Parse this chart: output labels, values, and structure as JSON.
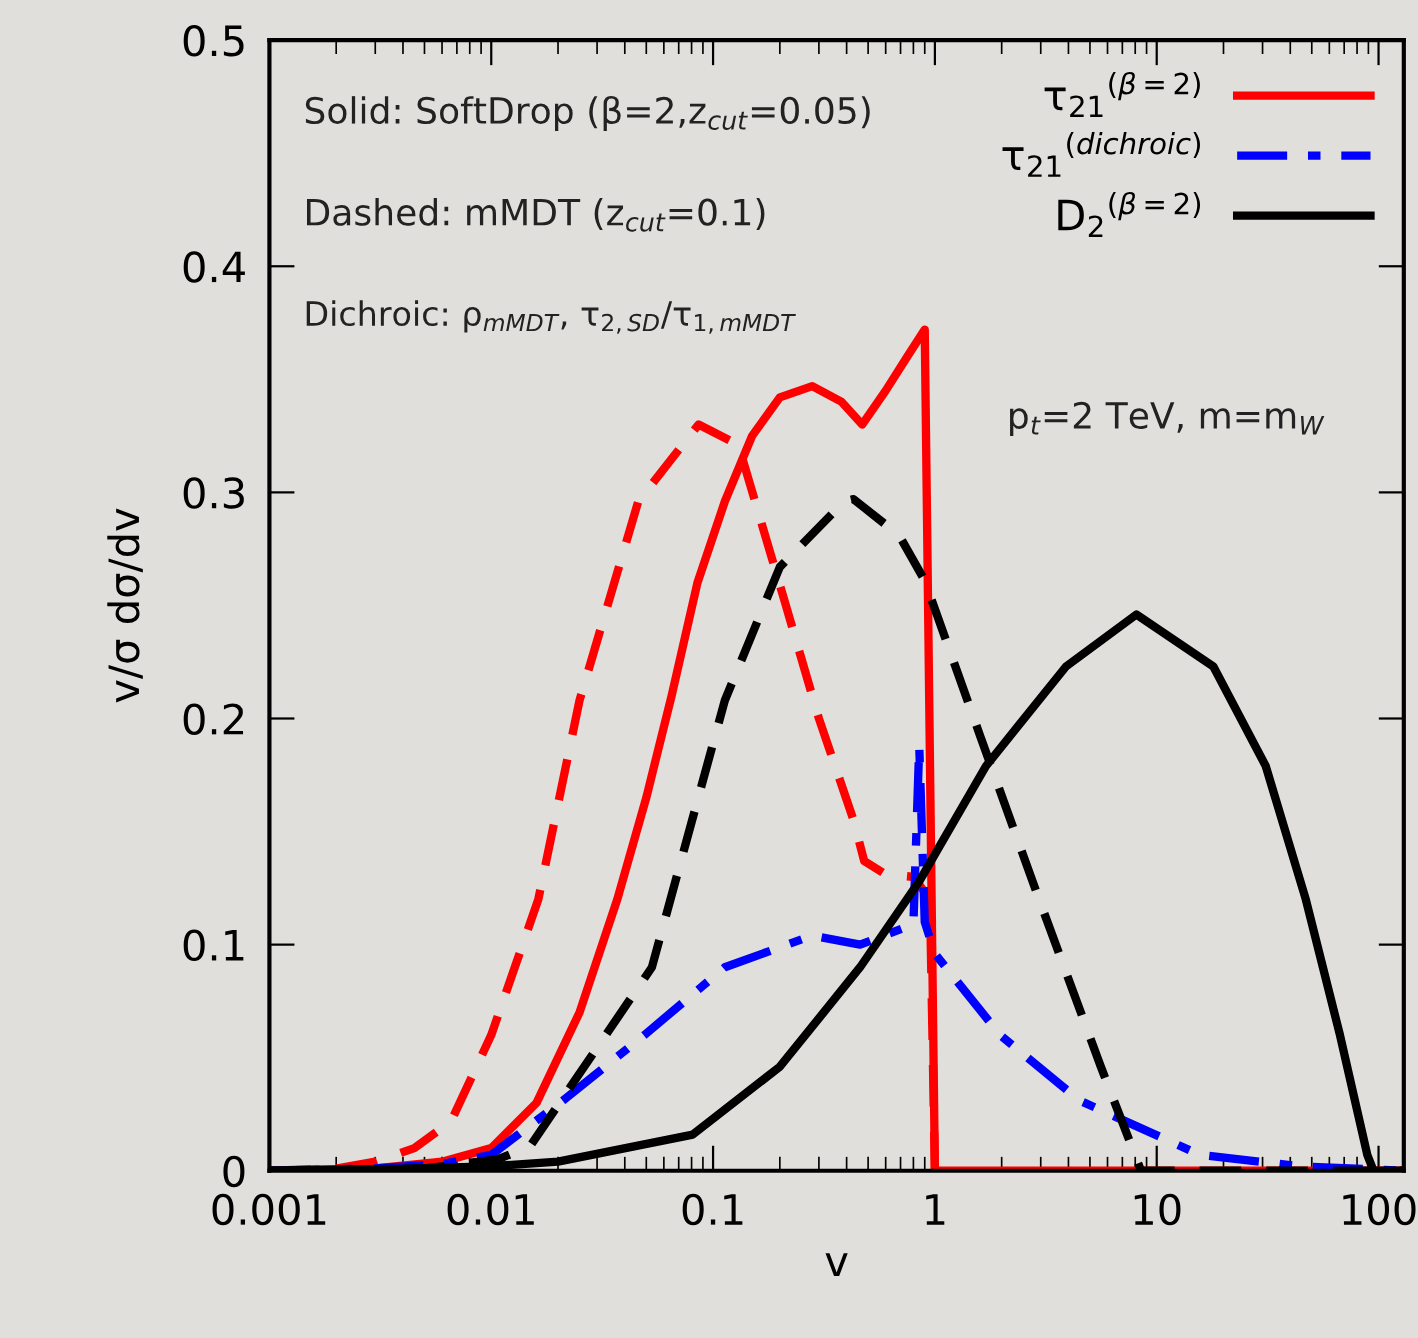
{
  "chart_data": {
    "type": "line",
    "xlabel": "v",
    "ylabel": "v/σ dσ/dv",
    "log": "x",
    "grid": false,
    "legend": "top right",
    "xlim": [
      0.001,
      130
    ],
    "xticks": [
      {
        "value": 0.001,
        "label": "0.001"
      },
      {
        "value": 0.01,
        "label": "0.01"
      },
      {
        "value": 0.1,
        "label": "0.1"
      },
      {
        "value": 1,
        "label": "1"
      },
      {
        "value": 10,
        "label": "10"
      },
      {
        "value": 100,
        "label": "100"
      }
    ],
    "ylim": [
      0,
      0.5
    ],
    "yticks": [
      0,
      0.1,
      0.2,
      0.3,
      0.4,
      0.5
    ],
    "annotations": [
      "Solid: SoftDrop (β=2,z$_{cut}$=0.05)",
      "Dashed: mMDT (z$_{cut}$=0.1)",
      "Dichroic: ρ$_{mMDT}$, τ$_{2,SD}$/τ$_{1,mMDT}$",
      "p$_{t}$=2 TeV, m=m$_{W}$"
    ],
    "series": [
      {
        "name": "τ$_{21}$$^{(β=2)}$",
        "color": "#ff0000",
        "line_style": "solid",
        "x": [
          0.001,
          0.003,
          0.006,
          0.01,
          0.016,
          0.025,
          0.037,
          0.05,
          0.065,
          0.085,
          0.113,
          0.15,
          0.2,
          0.28,
          0.38,
          0.47,
          0.6,
          0.75,
          0.9,
          1.0,
          10,
          130
        ],
        "values": [
          0,
          0.001,
          0.004,
          0.01,
          0.03,
          0.07,
          0.12,
          0.165,
          0.21,
          0.26,
          0.296,
          0.325,
          0.342,
          0.347,
          0.34,
          0.33,
          0.345,
          0.36,
          0.372,
          0,
          0,
          0
        ]
      },
      {
        "color": "#ff0000",
        "line_style": "dashed",
        "x": [
          0.001,
          0.002,
          0.003,
          0.0045,
          0.0066,
          0.01,
          0.0163,
          0.025,
          0.046,
          0.086,
          0.13,
          0.21,
          0.3,
          0.43,
          0.48,
          0.6,
          0.8,
          0.95,
          1.0
        ],
        "values": [
          0,
          0.001,
          0.004,
          0.01,
          0.022,
          0.06,
          0.12,
          0.208,
          0.296,
          0.33,
          0.321,
          0.252,
          0.2,
          0.155,
          0.137,
          0.131,
          0.13,
          0.12,
          0
        ]
      },
      {
        "name": "τ$_{21}$$^{(dichroic)}$",
        "color": "#0000ff",
        "line_style": "dashdot",
        "x": [
          0.001,
          0.003,
          0.006,
          0.01,
          0.021,
          0.049,
          0.113,
          0.28,
          0.46,
          0.8,
          0.85,
          0.9,
          1.0,
          1.97,
          4.5,
          15.7,
          44,
          130
        ],
        "values": [
          0,
          0.001,
          0.003,
          0.007,
          0.031,
          0.06,
          0.09,
          0.104,
          0.1,
          0.109,
          0.188,
          0.11,
          0.096,
          0.06,
          0.031,
          0.007,
          0.002,
          0
        ]
      },
      {
        "color": "#000000",
        "line_style": "dashed",
        "x": [
          0.001,
          0.005,
          0.0107,
          0.015,
          0.053,
          0.113,
          0.2,
          0.39,
          0.43,
          0.69,
          0.9,
          1.59,
          2.95,
          5.6,
          8.5,
          130
        ],
        "values": [
          0,
          0.001,
          0.005,
          0.011,
          0.09,
          0.208,
          0.267,
          0.296,
          0.297,
          0.281,
          0.261,
          0.193,
          0.12,
          0.046,
          0,
          0
        ]
      },
      {
        "name": "D$_{2}$$^{(β=2)}$",
        "color": "#000000",
        "line_style": "solid",
        "x": [
          0.001,
          0.005,
          0.01,
          0.02,
          0.081,
          0.2,
          0.46,
          0.85,
          1.7,
          3.9,
          8.1,
          18,
          31,
          47,
          67,
          89,
          95,
          130
        ],
        "values": [
          0,
          0.001,
          0.002,
          0.004,
          0.016,
          0.046,
          0.09,
          0.128,
          0.179,
          0.223,
          0.246,
          0.223,
          0.179,
          0.12,
          0.06,
          0.007,
          0,
          0
        ]
      }
    ]
  }
}
